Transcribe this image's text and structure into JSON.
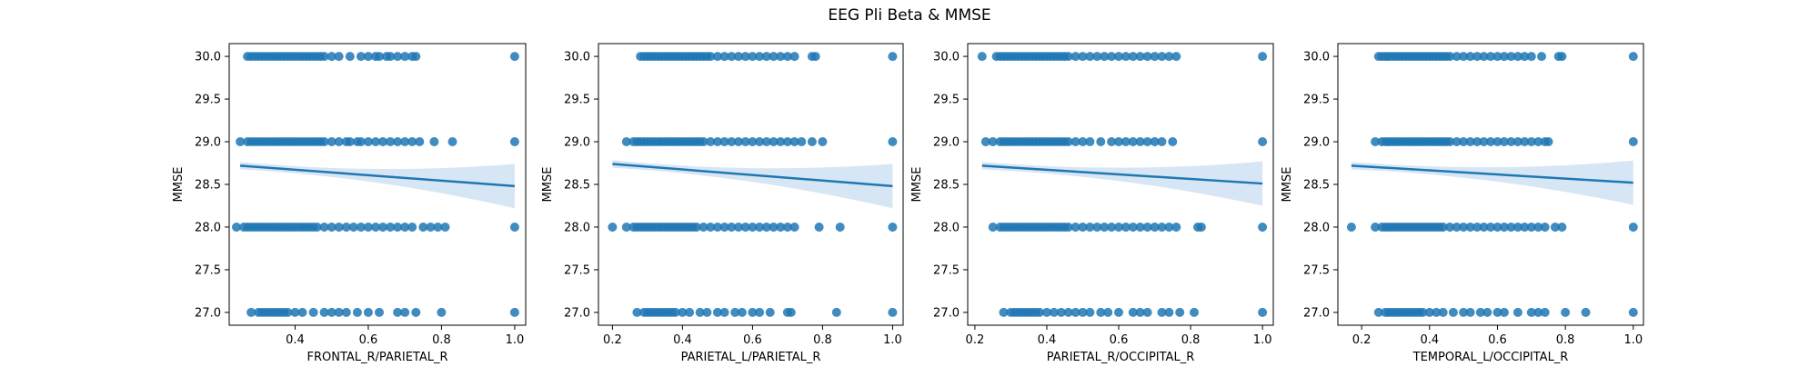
{
  "figure": {
    "title": "EEG Pli Beta & MMSE",
    "point_color": "#1f77b4",
    "band_color": "#c6dbef"
  },
  "chart_data": [
    {
      "type": "scatter",
      "xlabel": "FRONTAL_R/PARIETAL_R",
      "ylabel": "MMSE",
      "xlim": [
        0.22,
        1.03
      ],
      "ylim": [
        26.85,
        30.15
      ],
      "xticks": [
        0.4,
        0.6,
        0.8,
        1.0
      ],
      "xtick_labels": [
        "0.4",
        "0.6",
        "0.8",
        "1.0"
      ],
      "yticks": [
        27.0,
        27.5,
        28.0,
        28.5,
        29.0,
        29.5,
        30.0
      ],
      "ytick_labels": [
        "27.0",
        "27.5",
        "28.0",
        "28.5",
        "29.0",
        "29.5",
        "30.0"
      ],
      "regression": {
        "x": [
          0.25,
          1.0
        ],
        "y": [
          28.72,
          28.48
        ]
      },
      "points": [
        {
          "y": 30.0,
          "x": [
            0.27,
            0.28,
            0.29,
            0.3,
            0.31,
            0.32,
            0.33,
            0.34,
            0.35,
            0.36,
            0.37,
            0.38,
            0.39,
            0.4,
            0.41,
            0.42,
            0.43,
            0.44,
            0.45,
            0.46,
            0.47,
            0.48,
            0.5,
            0.52,
            0.55,
            0.58,
            0.6,
            0.62,
            0.63,
            0.65,
            0.66,
            0.68,
            0.7,
            0.72,
            0.73,
            1.0
          ]
        },
        {
          "y": 29.0,
          "x": [
            0.25,
            0.27,
            0.28,
            0.29,
            0.3,
            0.31,
            0.32,
            0.33,
            0.34,
            0.35,
            0.36,
            0.37,
            0.38,
            0.39,
            0.4,
            0.41,
            0.42,
            0.43,
            0.44,
            0.45,
            0.46,
            0.47,
            0.48,
            0.5,
            0.52,
            0.54,
            0.55,
            0.57,
            0.58,
            0.6,
            0.62,
            0.64,
            0.66,
            0.68,
            0.7,
            0.72,
            0.74,
            0.78,
            0.83,
            1.0
          ]
        },
        {
          "y": 28.0,
          "x": [
            0.24,
            0.26,
            0.27,
            0.28,
            0.29,
            0.3,
            0.31,
            0.32,
            0.33,
            0.34,
            0.35,
            0.36,
            0.37,
            0.38,
            0.39,
            0.4,
            0.41,
            0.42,
            0.43,
            0.44,
            0.45,
            0.46,
            0.48,
            0.5,
            0.52,
            0.54,
            0.56,
            0.58,
            0.6,
            0.62,
            0.64,
            0.66,
            0.68,
            0.7,
            0.72,
            0.75,
            0.77,
            0.79,
            0.81,
            1.0
          ]
        },
        {
          "y": 27.0,
          "x": [
            0.28,
            0.3,
            0.31,
            0.32,
            0.33,
            0.34,
            0.35,
            0.36,
            0.37,
            0.38,
            0.4,
            0.42,
            0.45,
            0.48,
            0.5,
            0.52,
            0.54,
            0.57,
            0.6,
            0.63,
            0.68,
            0.7,
            0.73,
            0.8,
            1.0
          ]
        }
      ]
    },
    {
      "type": "scatter",
      "xlabel": "PARIETAL_L/PARIETAL_R",
      "ylabel": "MMSE",
      "xlim": [
        0.16,
        1.03
      ],
      "ylim": [
        26.85,
        30.15
      ],
      "xticks": [
        0.2,
        0.4,
        0.6,
        0.8,
        1.0
      ],
      "xtick_labels": [
        "0.2",
        "0.4",
        "0.6",
        "0.8",
        "1.0"
      ],
      "yticks": [
        27.0,
        27.5,
        28.0,
        28.5,
        29.0,
        29.5,
        30.0
      ],
      "ytick_labels": [
        "27.0",
        "27.5",
        "28.0",
        "28.5",
        "29.0",
        "29.5",
        "30.0"
      ],
      "regression": {
        "x": [
          0.2,
          1.0
        ],
        "y": [
          28.74,
          28.48
        ]
      },
      "points": [
        {
          "y": 30.0,
          "x": [
            0.28,
            0.29,
            0.3,
            0.31,
            0.32,
            0.33,
            0.34,
            0.35,
            0.36,
            0.37,
            0.38,
            0.39,
            0.4,
            0.41,
            0.42,
            0.43,
            0.44,
            0.45,
            0.46,
            0.47,
            0.48,
            0.5,
            0.52,
            0.54,
            0.56,
            0.58,
            0.6,
            0.62,
            0.64,
            0.66,
            0.68,
            0.7,
            0.72,
            0.77,
            0.78,
            1.0
          ]
        },
        {
          "y": 29.0,
          "x": [
            0.24,
            0.26,
            0.27,
            0.28,
            0.29,
            0.3,
            0.31,
            0.32,
            0.33,
            0.34,
            0.35,
            0.36,
            0.37,
            0.38,
            0.39,
            0.4,
            0.41,
            0.42,
            0.43,
            0.44,
            0.45,
            0.46,
            0.48,
            0.5,
            0.52,
            0.54,
            0.56,
            0.58,
            0.6,
            0.62,
            0.64,
            0.66,
            0.68,
            0.7,
            0.72,
            0.74,
            0.77,
            0.8,
            1.0
          ]
        },
        {
          "y": 28.0,
          "x": [
            0.2,
            0.24,
            0.26,
            0.27,
            0.28,
            0.29,
            0.3,
            0.31,
            0.32,
            0.33,
            0.34,
            0.35,
            0.36,
            0.37,
            0.38,
            0.39,
            0.4,
            0.41,
            0.42,
            0.43,
            0.44,
            0.46,
            0.48,
            0.5,
            0.52,
            0.54,
            0.56,
            0.58,
            0.6,
            0.62,
            0.64,
            0.66,
            0.68,
            0.7,
            0.72,
            0.79,
            0.85,
            1.0
          ]
        },
        {
          "y": 27.0,
          "x": [
            0.27,
            0.29,
            0.3,
            0.31,
            0.32,
            0.33,
            0.34,
            0.35,
            0.36,
            0.37,
            0.38,
            0.4,
            0.42,
            0.45,
            0.47,
            0.5,
            0.52,
            0.55,
            0.57,
            0.6,
            0.62,
            0.65,
            0.7,
            0.71,
            0.84,
            1.0
          ]
        }
      ]
    },
    {
      "type": "scatter",
      "xlabel": "PARIETAL_R/OCCIPITAL_R",
      "ylabel": "MMSE",
      "xlim": [
        0.18,
        1.03
      ],
      "ylim": [
        26.85,
        30.15
      ],
      "xticks": [
        0.2,
        0.4,
        0.6,
        0.8,
        1.0
      ],
      "xtick_labels": [
        "0.2",
        "0.4",
        "0.6",
        "0.8",
        "1.0"
      ],
      "yticks": [
        27.0,
        27.5,
        28.0,
        28.5,
        29.0,
        29.5,
        30.0
      ],
      "ytick_labels": [
        "27.0",
        "27.5",
        "28.0",
        "28.5",
        "29.0",
        "29.5",
        "30.0"
      ],
      "regression": {
        "x": [
          0.22,
          1.0
        ],
        "y": [
          28.72,
          28.51
        ]
      },
      "points": [
        {
          "y": 30.0,
          "x": [
            0.22,
            0.26,
            0.27,
            0.28,
            0.29,
            0.3,
            0.31,
            0.32,
            0.33,
            0.34,
            0.35,
            0.36,
            0.37,
            0.38,
            0.39,
            0.4,
            0.41,
            0.42,
            0.43,
            0.44,
            0.45,
            0.46,
            0.48,
            0.5,
            0.52,
            0.54,
            0.56,
            0.58,
            0.6,
            0.62,
            0.64,
            0.66,
            0.68,
            0.7,
            0.72,
            0.74,
            0.76,
            1.0
          ]
        },
        {
          "y": 29.0,
          "x": [
            0.23,
            0.25,
            0.27,
            0.28,
            0.29,
            0.3,
            0.31,
            0.32,
            0.33,
            0.34,
            0.35,
            0.36,
            0.37,
            0.38,
            0.39,
            0.4,
            0.41,
            0.42,
            0.43,
            0.44,
            0.45,
            0.46,
            0.48,
            0.5,
            0.52,
            0.55,
            0.58,
            0.6,
            0.62,
            0.64,
            0.66,
            0.68,
            0.7,
            0.72,
            0.75,
            1.0
          ]
        },
        {
          "y": 28.0,
          "x": [
            0.25,
            0.27,
            0.28,
            0.29,
            0.3,
            0.31,
            0.32,
            0.33,
            0.34,
            0.35,
            0.36,
            0.37,
            0.38,
            0.39,
            0.4,
            0.41,
            0.42,
            0.43,
            0.44,
            0.45,
            0.46,
            0.48,
            0.5,
            0.52,
            0.54,
            0.56,
            0.58,
            0.6,
            0.62,
            0.64,
            0.66,
            0.68,
            0.7,
            0.72,
            0.74,
            0.76,
            0.82,
            0.83,
            1.0
          ]
        },
        {
          "y": 27.0,
          "x": [
            0.28,
            0.3,
            0.31,
            0.32,
            0.33,
            0.34,
            0.35,
            0.36,
            0.37,
            0.38,
            0.4,
            0.42,
            0.44,
            0.46,
            0.48,
            0.5,
            0.52,
            0.55,
            0.57,
            0.6,
            0.64,
            0.66,
            0.68,
            0.72,
            0.74,
            0.77,
            0.81,
            1.0
          ]
        }
      ]
    },
    {
      "type": "scatter",
      "xlabel": "TEMPORAL_L/OCCIPITAL_R",
      "ylabel": "MMSE",
      "xlim": [
        0.13,
        1.03
      ],
      "ylim": [
        26.85,
        30.15
      ],
      "xticks": [
        0.2,
        0.4,
        0.6,
        0.8,
        1.0
      ],
      "xtick_labels": [
        "0.2",
        "0.4",
        "0.6",
        "0.8",
        "1.0"
      ],
      "yticks": [
        27.0,
        27.5,
        28.0,
        28.5,
        29.0,
        29.5,
        30.0
      ],
      "ytick_labels": [
        "27.0",
        "27.5",
        "28.0",
        "28.5",
        "29.0",
        "29.5",
        "30.0"
      ],
      "regression": {
        "x": [
          0.17,
          1.0
        ],
        "y": [
          28.72,
          28.52
        ]
      },
      "points": [
        {
          "y": 30.0,
          "x": [
            0.25,
            0.26,
            0.27,
            0.28,
            0.29,
            0.3,
            0.31,
            0.32,
            0.33,
            0.34,
            0.35,
            0.36,
            0.37,
            0.38,
            0.39,
            0.4,
            0.41,
            0.42,
            0.43,
            0.44,
            0.45,
            0.46,
            0.48,
            0.5,
            0.52,
            0.54,
            0.56,
            0.58,
            0.6,
            0.62,
            0.64,
            0.66,
            0.68,
            0.7,
            0.73,
            0.78,
            0.79,
            1.0
          ]
        },
        {
          "y": 29.0,
          "x": [
            0.24,
            0.26,
            0.27,
            0.28,
            0.29,
            0.3,
            0.31,
            0.32,
            0.33,
            0.34,
            0.35,
            0.36,
            0.37,
            0.38,
            0.39,
            0.4,
            0.41,
            0.42,
            0.43,
            0.44,
            0.45,
            0.46,
            0.48,
            0.5,
            0.52,
            0.54,
            0.56,
            0.58,
            0.6,
            0.62,
            0.64,
            0.66,
            0.68,
            0.7,
            0.72,
            0.74,
            0.75,
            1.0
          ]
        },
        {
          "y": 28.0,
          "x": [
            0.17,
            0.24,
            0.26,
            0.27,
            0.28,
            0.29,
            0.3,
            0.31,
            0.32,
            0.33,
            0.34,
            0.35,
            0.36,
            0.37,
            0.38,
            0.39,
            0.4,
            0.41,
            0.42,
            0.43,
            0.44,
            0.46,
            0.48,
            0.5,
            0.52,
            0.54,
            0.56,
            0.58,
            0.6,
            0.62,
            0.64,
            0.66,
            0.68,
            0.7,
            0.72,
            0.74,
            0.77,
            0.79,
            1.0
          ]
        },
        {
          "y": 27.0,
          "x": [
            0.25,
            0.27,
            0.28,
            0.29,
            0.3,
            0.31,
            0.32,
            0.33,
            0.34,
            0.35,
            0.36,
            0.37,
            0.38,
            0.4,
            0.42,
            0.44,
            0.47,
            0.5,
            0.52,
            0.55,
            0.57,
            0.6,
            0.62,
            0.66,
            0.7,
            0.72,
            0.74,
            0.8,
            0.86,
            1.0
          ]
        }
      ]
    }
  ]
}
